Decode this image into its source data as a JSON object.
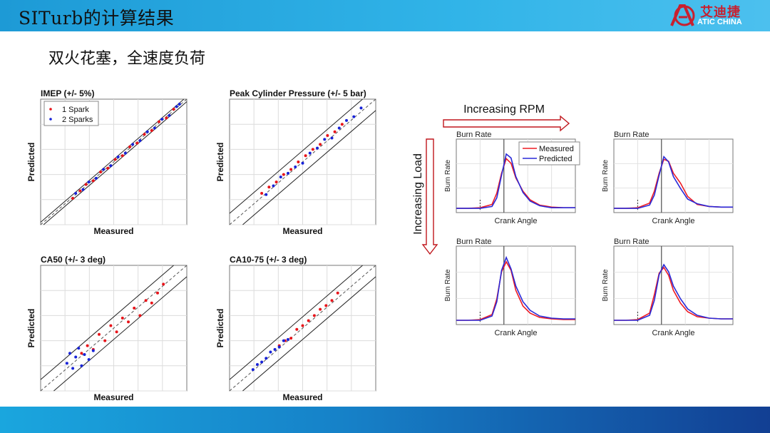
{
  "header": {
    "title": "SITurb的计算结果",
    "logo_cn": "艾迪捷",
    "logo_en": "ATIC CHINA",
    "colors": {
      "band": "#1d9ad6",
      "logo_red": "#c8202f"
    }
  },
  "subtitle": "双火花塞，全速度负荷",
  "colors": {
    "one_spark": "#e8141a",
    "two_sparks": "#1722d8",
    "measured": "#ee1c24",
    "predicted": "#2a2ad8",
    "arrow": "#c0171d"
  },
  "chart_data": [
    {
      "type": "scatter",
      "title": "IMEP (+/- 5%)",
      "xlabel": "Measured",
      "ylabel": "Predicted",
      "legend": {
        "position": "top-left",
        "entries": [
          "1 Spark",
          "2 Sparks"
        ]
      },
      "grid": true,
      "band": "relative",
      "series": [
        {
          "name": "1 Spark",
          "color": "#e8141a",
          "x": [
            0.22,
            0.27,
            0.31,
            0.36,
            0.41,
            0.46,
            0.51,
            0.56,
            0.61,
            0.66,
            0.71,
            0.76,
            0.81,
            0.86,
            0.91
          ],
          "y": [
            0.21,
            0.27,
            0.32,
            0.35,
            0.42,
            0.45,
            0.52,
            0.55,
            0.62,
            0.65,
            0.72,
            0.75,
            0.82,
            0.85,
            0.92
          ]
        },
        {
          "name": "2 Sparks",
          "color": "#1722d8",
          "x": [
            0.24,
            0.29,
            0.33,
            0.38,
            0.43,
            0.48,
            0.53,
            0.58,
            0.63,
            0.68,
            0.73,
            0.78,
            0.83,
            0.88,
            0.93,
            0.95
          ],
          "y": [
            0.25,
            0.28,
            0.34,
            0.37,
            0.44,
            0.47,
            0.54,
            0.57,
            0.64,
            0.67,
            0.74,
            0.77,
            0.84,
            0.87,
            0.94,
            0.96
          ]
        }
      ]
    },
    {
      "type": "scatter",
      "title": "Peak Cylinder Pressure (+/- 5 bar)",
      "xlabel": "Measured",
      "ylabel": "Predicted",
      "grid": true,
      "band": "absolute",
      "series": [
        {
          "name": "1 Spark",
          "color": "#e8141a",
          "x": [
            0.22,
            0.27,
            0.32,
            0.37,
            0.42,
            0.47,
            0.52,
            0.57,
            0.62,
            0.67,
            0.72,
            0.77
          ],
          "y": [
            0.25,
            0.3,
            0.34,
            0.4,
            0.44,
            0.5,
            0.55,
            0.6,
            0.64,
            0.71,
            0.74,
            0.8
          ]
        },
        {
          "name": "2 Sparks",
          "color": "#1722d8",
          "x": [
            0.25,
            0.3,
            0.35,
            0.4,
            0.45,
            0.5,
            0.55,
            0.6,
            0.65,
            0.7,
            0.75,
            0.8,
            0.85,
            0.9
          ],
          "y": [
            0.24,
            0.31,
            0.38,
            0.41,
            0.46,
            0.49,
            0.57,
            0.61,
            0.68,
            0.69,
            0.77,
            0.83,
            0.86,
            0.93
          ]
        }
      ]
    },
    {
      "type": "scatter",
      "title": "CA50 (+/- 3 deg)",
      "xlabel": "Measured",
      "ylabel": "Predicted",
      "grid": true,
      "band": "absolute",
      "series": [
        {
          "name": "1 Spark",
          "color": "#e8141a",
          "x": [
            0.28,
            0.32,
            0.36,
            0.4,
            0.44,
            0.48,
            0.52,
            0.56,
            0.6,
            0.64,
            0.68,
            0.72,
            0.76,
            0.8,
            0.84
          ],
          "y": [
            0.3,
            0.36,
            0.33,
            0.45,
            0.4,
            0.52,
            0.47,
            0.58,
            0.55,
            0.66,
            0.6,
            0.72,
            0.7,
            0.78,
            0.85
          ]
        },
        {
          "name": "2 Sparks",
          "color": "#1722d8",
          "x": [
            0.18,
            0.2,
            0.22,
            0.24,
            0.26,
            0.28,
            0.3,
            0.33,
            0.36
          ],
          "y": [
            0.22,
            0.3,
            0.18,
            0.27,
            0.34,
            0.2,
            0.29,
            0.25,
            0.32
          ]
        }
      ]
    },
    {
      "type": "scatter",
      "title": "CA10-75 (+/- 3 deg)",
      "xlabel": "Measured",
      "ylabel": "Predicted",
      "grid": true,
      "band": "absolute",
      "series": [
        {
          "name": "1 Spark",
          "color": "#e8141a",
          "x": [
            0.34,
            0.38,
            0.42,
            0.46,
            0.5,
            0.54,
            0.58,
            0.62,
            0.66,
            0.7,
            0.74
          ],
          "y": [
            0.36,
            0.4,
            0.42,
            0.49,
            0.52,
            0.56,
            0.6,
            0.65,
            0.68,
            0.72,
            0.78
          ]
        },
        {
          "name": "2 Sparks",
          "color": "#1722d8",
          "x": [
            0.16,
            0.19,
            0.22,
            0.25,
            0.28,
            0.31,
            0.34,
            0.37,
            0.4
          ],
          "y": [
            0.17,
            0.21,
            0.23,
            0.26,
            0.31,
            0.33,
            0.35,
            0.4,
            0.41
          ]
        }
      ]
    },
    {
      "type": "line",
      "row": "low-load",
      "col": "low-rpm",
      "title": "Burn Rate",
      "xlabel": "Crank Angle",
      "ylabel": "Burn Rate",
      "legend": {
        "position": "top-right",
        "entries": [
          "Measured",
          "Predicted"
        ]
      },
      "x": [
        0,
        0.1,
        0.2,
        0.3,
        0.34,
        0.38,
        0.42,
        0.46,
        0.5,
        0.56,
        0.62,
        0.7,
        0.8,
        0.9,
        1.0
      ],
      "series": [
        {
          "name": "Measured",
          "color": "#ee1c24",
          "values": [
            0.02,
            0.02,
            0.03,
            0.08,
            0.25,
            0.55,
            0.77,
            0.7,
            0.48,
            0.28,
            0.15,
            0.07,
            0.04,
            0.03,
            0.03
          ]
        },
        {
          "name": "Predicted",
          "color": "#2a2ad8",
          "values": [
            0.02,
            0.02,
            0.02,
            0.05,
            0.18,
            0.52,
            0.84,
            0.78,
            0.5,
            0.26,
            0.13,
            0.06,
            0.03,
            0.03,
            0.03
          ]
        }
      ]
    },
    {
      "type": "line",
      "row": "low-load",
      "col": "high-rpm",
      "title": "Burn Rate",
      "xlabel": "Crank Angle",
      "ylabel": "Burn Rate",
      "x": [
        0,
        0.1,
        0.2,
        0.3,
        0.34,
        0.38,
        0.42,
        0.46,
        0.5,
        0.56,
        0.62,
        0.7,
        0.8,
        0.9,
        1.0
      ],
      "series": [
        {
          "name": "Measured",
          "color": "#ee1c24",
          "values": [
            0.02,
            0.02,
            0.03,
            0.1,
            0.28,
            0.55,
            0.76,
            0.73,
            0.55,
            0.4,
            0.2,
            0.08,
            0.05,
            0.04,
            0.04
          ]
        },
        {
          "name": "Predicted",
          "color": "#2a2ad8",
          "values": [
            0.02,
            0.02,
            0.02,
            0.07,
            0.22,
            0.52,
            0.8,
            0.72,
            0.5,
            0.32,
            0.16,
            0.09,
            0.05,
            0.04,
            0.04
          ]
        }
      ]
    },
    {
      "type": "line",
      "row": "high-load",
      "col": "low-rpm",
      "title": "Burn Rate",
      "xlabel": "Crank Angle",
      "ylabel": "Burn Rate",
      "x": [
        0,
        0.1,
        0.2,
        0.3,
        0.34,
        0.38,
        0.42,
        0.46,
        0.5,
        0.56,
        0.62,
        0.7,
        0.8,
        0.9,
        1.0
      ],
      "series": [
        {
          "name": "Measured",
          "color": "#ee1c24",
          "values": [
            0.02,
            0.02,
            0.03,
            0.1,
            0.32,
            0.7,
            0.84,
            0.72,
            0.44,
            0.22,
            0.12,
            0.06,
            0.04,
            0.03,
            0.03
          ]
        },
        {
          "name": "Predicted",
          "color": "#2a2ad8",
          "values": [
            0.02,
            0.02,
            0.02,
            0.08,
            0.28,
            0.72,
            0.9,
            0.74,
            0.5,
            0.28,
            0.16,
            0.08,
            0.05,
            0.04,
            0.04
          ]
        }
      ]
    },
    {
      "type": "line",
      "row": "high-load",
      "col": "high-rpm",
      "title": "Burn Rate",
      "xlabel": "Crank Angle",
      "ylabel": "Burn Rate",
      "x": [
        0,
        0.1,
        0.2,
        0.3,
        0.34,
        0.38,
        0.42,
        0.46,
        0.5,
        0.56,
        0.62,
        0.7,
        0.8,
        0.9,
        1.0
      ],
      "series": [
        {
          "name": "Measured",
          "color": "#ee1c24",
          "values": [
            0.02,
            0.02,
            0.03,
            0.12,
            0.38,
            0.68,
            0.76,
            0.65,
            0.44,
            0.26,
            0.14,
            0.07,
            0.05,
            0.04,
            0.04
          ]
        },
        {
          "name": "Predicted",
          "color": "#2a2ad8",
          "values": [
            0.02,
            0.02,
            0.02,
            0.09,
            0.3,
            0.66,
            0.8,
            0.7,
            0.5,
            0.32,
            0.18,
            0.09,
            0.05,
            0.04,
            0.04
          ]
        }
      ]
    }
  ],
  "arrows": {
    "rpm_label": "Increasing RPM",
    "load_label": "Increasing Load"
  }
}
